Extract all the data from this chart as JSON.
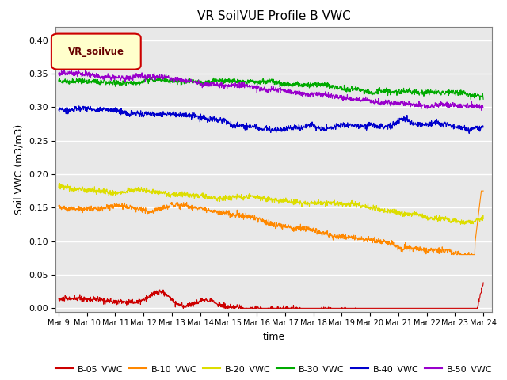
{
  "title": "VR SoilVUE Profile B VWC",
  "xlabel": "time",
  "ylabel": "Soil VWC (m3/m3)",
  "ylim": [
    -0.005,
    0.42
  ],
  "background_color": "#e8e8e8",
  "grid_color": "white",
  "series": {
    "B-05_VWC": {
      "color": "#cc0000",
      "lw": 0.8
    },
    "B-10_VWC": {
      "color": "#ff8800",
      "lw": 0.8
    },
    "B-20_VWC": {
      "color": "#dddd00",
      "lw": 0.8
    },
    "B-30_VWC": {
      "color": "#00aa00",
      "lw": 0.8
    },
    "B-40_VWC": {
      "color": "#0000cc",
      "lw": 0.8
    },
    "B-50_VWC": {
      "color": "#9900cc",
      "lw": 0.8
    }
  },
  "legend_box": {
    "text": "VR_soilvue",
    "facecolor": "#ffffcc",
    "edgecolor": "#cc0000",
    "textcolor": "#660000"
  },
  "n_points": 1500,
  "start_day": 0,
  "end_day": 15.0,
  "tick_days": [
    0,
    1,
    2,
    3,
    4,
    5,
    6,
    7,
    8,
    9,
    10,
    11,
    12,
    13,
    14,
    15
  ],
  "tick_labels": [
    "Mar 9",
    "Mar 10",
    "Mar 11",
    "Mar 12",
    "Mar 13",
    "Mar 14",
    "Mar 15",
    "Mar 16",
    "Mar 17",
    "Mar 18",
    "Mar 19",
    "Mar 20",
    "Mar 21",
    "Mar 22",
    "Mar 23",
    "Mar 24"
  ],
  "yticks": [
    0.0,
    0.05,
    0.1,
    0.15,
    0.2,
    0.25,
    0.3,
    0.35,
    0.4
  ]
}
